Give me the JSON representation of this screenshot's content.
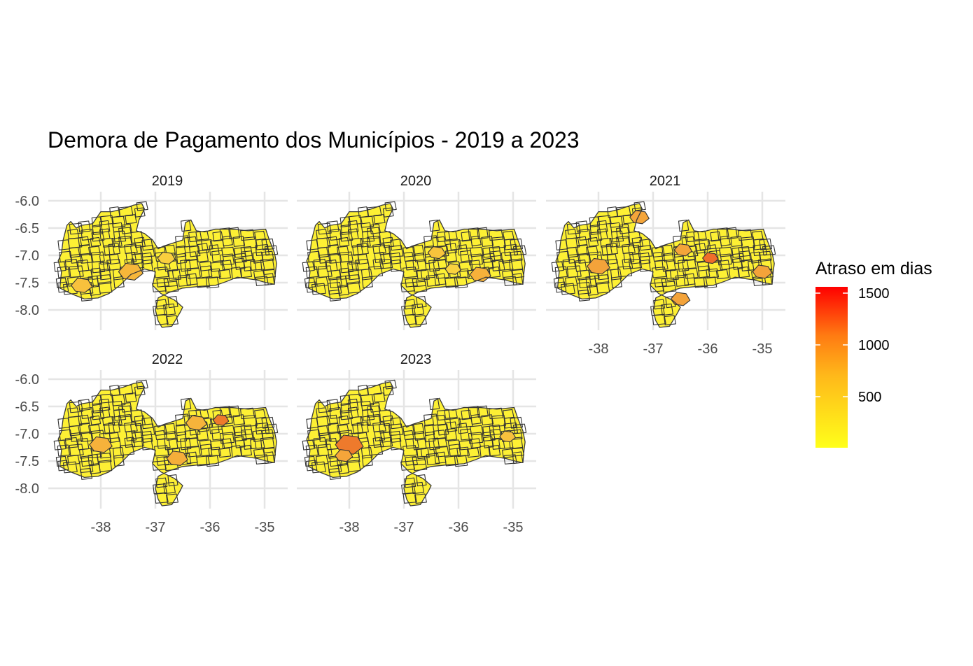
{
  "title": "Demora de Pagamento dos Municípios - 2019 a 2023",
  "panels": [
    {
      "label": "2019",
      "highlights": [
        [
          -37.45,
          -7.3,
          1.4,
          "#f6b73a"
        ],
        [
          -38.35,
          -7.55,
          1.2,
          "#f7c13d"
        ],
        [
          -36.8,
          -7.05,
          1.0,
          "#f9cf3e"
        ]
      ]
    },
    {
      "label": "2020",
      "highlights": [
        [
          -35.6,
          -7.35,
          1.2,
          "#f7b13a"
        ],
        [
          -36.4,
          -6.95,
          1.0,
          "#f8c43c"
        ],
        [
          -36.1,
          -7.25,
          0.9,
          "#f9d23f"
        ]
      ]
    },
    {
      "label": "2021",
      "highlights": [
        [
          -37.25,
          -6.3,
          1.1,
          "#f4a53a"
        ],
        [
          -38.0,
          -7.2,
          1.3,
          "#f3a33a"
        ],
        [
          -36.5,
          -7.8,
          1.1,
          "#f3a33a"
        ],
        [
          -36.45,
          -6.9,
          1.0,
          "#f4a53a"
        ],
        [
          -35.95,
          -7.05,
          0.9,
          "#ef6d2a"
        ],
        [
          -35.0,
          -7.3,
          1.1,
          "#f3a33a"
        ]
      ]
    },
    {
      "label": "2022",
      "highlights": [
        [
          -38.0,
          -7.2,
          1.3,
          "#f6b23b"
        ],
        [
          -36.6,
          -7.45,
          1.2,
          "#f5ae3a"
        ],
        [
          -36.25,
          -6.8,
          1.2,
          "#f6b43b"
        ],
        [
          -35.8,
          -6.75,
          0.9,
          "#ee7a2c"
        ]
      ]
    },
    {
      "label": "2023",
      "highlights": [
        [
          -38.0,
          -7.2,
          1.6,
          "#ee7a2c"
        ],
        [
          -38.1,
          -7.4,
          1.0,
          "#f5a53a"
        ],
        [
          -35.1,
          -7.05,
          0.9,
          "#f7c13d"
        ]
      ]
    }
  ],
  "x_ticks": [
    "-38",
    "-37",
    "-36",
    "-35"
  ],
  "y_ticks": [
    "-6.0",
    "-6.5",
    "-7.0",
    "-7.5",
    "-8.0"
  ],
  "legend": {
    "title": "Atraso em dias",
    "labels": [
      "1500",
      "1000",
      "500"
    ],
    "colors": {
      "low": "#ffff1a",
      "mid": "#ff9a1a",
      "high": "#ff0000"
    }
  },
  "colors": {
    "base_fill": "#fdf034",
    "border": "#333333",
    "grid": "#e5e5e5"
  }
}
